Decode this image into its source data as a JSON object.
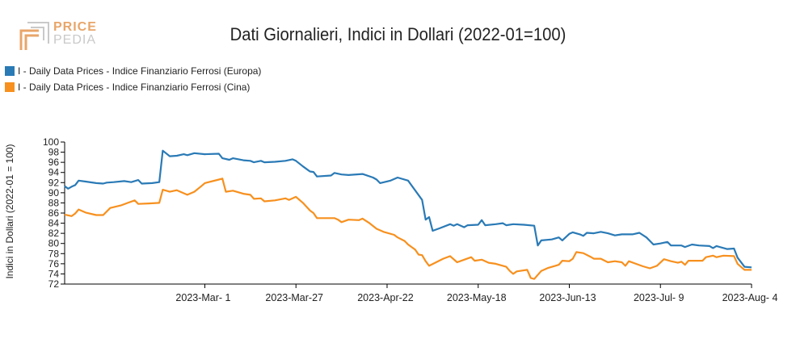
{
  "logo": {
    "price": "PRICE",
    "pedia": "PEDIA"
  },
  "colors": {
    "europa": "#2a7ab6",
    "cina": "#f7901e",
    "logo_orange": "#e8a66a",
    "logo_gray": "#c9c9c9"
  },
  "chart_data": {
    "type": "line",
    "title": "Dati Giornalieri, Indici in Dollari (2022-01=100)",
    "ylabel": "Indici in Dollari (2022-01 = 100)",
    "xlabel": "",
    "ylim": [
      72,
      100
    ],
    "yticks": [
      72,
      74,
      76,
      78,
      80,
      82,
      84,
      86,
      88,
      90,
      92,
      94,
      96,
      98,
      100
    ],
    "xlim": [
      "2023-01-20",
      "2023-08-04"
    ],
    "xticks": [
      {
        "date": "2023-03-01",
        "label": "2023-Mar- 1"
      },
      {
        "date": "2023-03-27",
        "label": "2023-Mar-27"
      },
      {
        "date": "2023-04-22",
        "label": "2023-Apr-22"
      },
      {
        "date": "2023-05-18",
        "label": "2023-May-18"
      },
      {
        "date": "2023-06-13",
        "label": "2023-Jun-13"
      },
      {
        "date": "2023-07-09",
        "label": "2023-Jul- 9"
      },
      {
        "date": "2023-08-04",
        "label": "2023-Aug- 4"
      }
    ],
    "legend_position": "top-left",
    "grid": false,
    "series": [
      {
        "name": "I - Daily Data Prices - Indice Finanziario Ferrosi (Europa)",
        "color": "#2a7ab6",
        "points": [
          [
            "2023-01-20",
            91.3
          ],
          [
            "2023-01-21",
            90.8
          ],
          [
            "2023-01-22",
            91.2
          ],
          [
            "2023-01-23",
            91.5
          ],
          [
            "2023-01-24",
            92.4
          ],
          [
            "2023-01-26",
            92.2
          ],
          [
            "2023-01-29",
            91.9
          ],
          [
            "2023-01-31",
            91.8
          ],
          [
            "2023-02-01",
            92.0
          ],
          [
            "2023-02-03",
            92.1
          ],
          [
            "2023-02-06",
            92.3
          ],
          [
            "2023-02-08",
            92.1
          ],
          [
            "2023-02-10",
            92.5
          ],
          [
            "2023-02-11",
            91.8
          ],
          [
            "2023-02-14",
            91.9
          ],
          [
            "2023-02-16",
            92.1
          ],
          [
            "2023-02-17",
            98.3
          ],
          [
            "2023-02-19",
            97.2
          ],
          [
            "2023-02-21",
            97.3
          ],
          [
            "2023-02-23",
            97.6
          ],
          [
            "2023-02-24",
            97.4
          ],
          [
            "2023-02-26",
            97.8
          ],
          [
            "2023-03-01",
            97.6
          ],
          [
            "2023-03-05",
            97.7
          ],
          [
            "2023-03-06",
            96.8
          ],
          [
            "2023-03-08",
            96.5
          ],
          [
            "2023-03-09",
            96.8
          ],
          [
            "2023-03-12",
            96.4
          ],
          [
            "2023-03-14",
            96.3
          ],
          [
            "2023-03-15",
            96.0
          ],
          [
            "2023-03-17",
            96.3
          ],
          [
            "2023-03-18",
            96.0
          ],
          [
            "2023-03-21",
            96.1
          ],
          [
            "2023-03-24",
            96.3
          ],
          [
            "2023-03-26",
            96.6
          ],
          [
            "2023-03-27",
            96.3
          ],
          [
            "2023-03-29",
            95.2
          ],
          [
            "2023-03-31",
            94.2
          ],
          [
            "2023-04-01",
            94.1
          ],
          [
            "2023-04-02",
            93.2
          ],
          [
            "2023-04-06",
            93.4
          ],
          [
            "2023-04-07",
            93.9
          ],
          [
            "2023-04-09",
            93.6
          ],
          [
            "2023-04-11",
            93.5
          ],
          [
            "2023-04-15",
            93.7
          ],
          [
            "2023-04-18",
            93.0
          ],
          [
            "2023-04-19",
            92.6
          ],
          [
            "2023-04-20",
            91.9
          ],
          [
            "2023-04-23",
            92.4
          ],
          [
            "2023-04-25",
            93.0
          ],
          [
            "2023-04-28",
            92.4
          ],
          [
            "2023-05-02",
            88.6
          ],
          [
            "2023-05-03",
            84.7
          ],
          [
            "2023-05-04",
            85.2
          ],
          [
            "2023-05-05",
            82.5
          ],
          [
            "2023-05-07",
            83.0
          ],
          [
            "2023-05-10",
            83.8
          ],
          [
            "2023-05-11",
            83.5
          ],
          [
            "2023-05-12",
            83.8
          ],
          [
            "2023-05-14",
            83.2
          ],
          [
            "2023-05-15",
            83.6
          ],
          [
            "2023-05-18",
            83.7
          ],
          [
            "2023-05-19",
            84.6
          ],
          [
            "2023-05-20",
            83.6
          ],
          [
            "2023-05-23",
            83.8
          ],
          [
            "2023-05-25",
            84.0
          ],
          [
            "2023-05-26",
            83.6
          ],
          [
            "2023-05-28",
            83.8
          ],
          [
            "2023-05-31",
            83.7
          ],
          [
            "2023-06-03",
            83.5
          ],
          [
            "2023-06-04",
            79.6
          ],
          [
            "2023-06-05",
            80.6
          ],
          [
            "2023-06-08",
            80.8
          ],
          [
            "2023-06-10",
            81.2
          ],
          [
            "2023-06-11",
            80.6
          ],
          [
            "2023-06-13",
            81.9
          ],
          [
            "2023-06-14",
            82.2
          ],
          [
            "2023-06-16",
            81.8
          ],
          [
            "2023-06-17",
            81.5
          ],
          [
            "2023-06-18",
            82.1
          ],
          [
            "2023-06-20",
            82.0
          ],
          [
            "2023-06-22",
            82.3
          ],
          [
            "2023-06-24",
            82.0
          ],
          [
            "2023-06-26",
            81.6
          ],
          [
            "2023-06-28",
            81.8
          ],
          [
            "2023-07-01",
            81.8
          ],
          [
            "2023-07-03",
            82.1
          ],
          [
            "2023-07-05",
            81.2
          ],
          [
            "2023-07-07",
            79.8
          ],
          [
            "2023-07-09",
            80.0
          ],
          [
            "2023-07-11",
            80.3
          ],
          [
            "2023-07-12",
            79.6
          ],
          [
            "2023-07-15",
            79.6
          ],
          [
            "2023-07-16",
            79.3
          ],
          [
            "2023-07-18",
            79.8
          ],
          [
            "2023-07-20",
            79.6
          ],
          [
            "2023-07-23",
            79.5
          ],
          [
            "2023-07-24",
            79.1
          ],
          [
            "2023-07-25",
            79.5
          ],
          [
            "2023-07-28",
            78.9
          ],
          [
            "2023-07-30",
            79.0
          ],
          [
            "2023-07-31",
            77.2
          ],
          [
            "2023-08-02",
            75.4
          ],
          [
            "2023-08-04",
            75.3
          ]
        ]
      },
      {
        "name": "I - Daily Data Prices - Indice Finanziario Ferrosi (Cina)",
        "color": "#f7901e",
        "points": [
          [
            "2023-01-20",
            85.7
          ],
          [
            "2023-01-22",
            85.4
          ],
          [
            "2023-01-23",
            85.9
          ],
          [
            "2023-01-24",
            86.7
          ],
          [
            "2023-01-26",
            86.1
          ],
          [
            "2023-01-29",
            85.6
          ],
          [
            "2023-01-31",
            85.6
          ],
          [
            "2023-02-02",
            87.0
          ],
          [
            "2023-02-05",
            87.5
          ],
          [
            "2023-02-07",
            88.0
          ],
          [
            "2023-02-09",
            88.5
          ],
          [
            "2023-02-10",
            87.8
          ],
          [
            "2023-02-13",
            87.9
          ],
          [
            "2023-02-16",
            88.0
          ],
          [
            "2023-02-17",
            90.6
          ],
          [
            "2023-02-19",
            90.2
          ],
          [
            "2023-02-21",
            90.5
          ],
          [
            "2023-02-24",
            89.6
          ],
          [
            "2023-02-26",
            90.2
          ],
          [
            "2023-02-28",
            91.3
          ],
          [
            "2023-03-01",
            91.9
          ],
          [
            "2023-03-05",
            92.6
          ],
          [
            "2023-03-06",
            92.8
          ],
          [
            "2023-03-07",
            90.2
          ],
          [
            "2023-03-09",
            90.4
          ],
          [
            "2023-03-12",
            89.8
          ],
          [
            "2023-03-14",
            89.6
          ],
          [
            "2023-03-15",
            88.8
          ],
          [
            "2023-03-17",
            88.9
          ],
          [
            "2023-03-18",
            88.3
          ],
          [
            "2023-03-21",
            88.5
          ],
          [
            "2023-03-24",
            88.9
          ],
          [
            "2023-03-25",
            88.6
          ],
          [
            "2023-03-27",
            89.2
          ],
          [
            "2023-03-29",
            88.0
          ],
          [
            "2023-03-31",
            86.5
          ],
          [
            "2023-04-01",
            86.0
          ],
          [
            "2023-04-02",
            85.0
          ],
          [
            "2023-04-07",
            85.0
          ],
          [
            "2023-04-08",
            84.7
          ],
          [
            "2023-04-09",
            84.2
          ],
          [
            "2023-04-11",
            84.7
          ],
          [
            "2023-04-14",
            84.6
          ],
          [
            "2023-04-15",
            84.9
          ],
          [
            "2023-04-17",
            84.0
          ],
          [
            "2023-04-19",
            82.9
          ],
          [
            "2023-04-21",
            82.3
          ],
          [
            "2023-04-24",
            81.7
          ],
          [
            "2023-04-25",
            81.2
          ],
          [
            "2023-04-27",
            80.5
          ],
          [
            "2023-04-28",
            79.8
          ],
          [
            "2023-04-30",
            78.8
          ],
          [
            "2023-05-01",
            77.8
          ],
          [
            "2023-05-02",
            77.7
          ],
          [
            "2023-05-03",
            76.5
          ],
          [
            "2023-05-04",
            75.6
          ],
          [
            "2023-05-06",
            76.3
          ],
          [
            "2023-05-08",
            77.0
          ],
          [
            "2023-05-10",
            77.5
          ],
          [
            "2023-05-12",
            76.3
          ],
          [
            "2023-05-14",
            76.8
          ],
          [
            "2023-05-16",
            77.3
          ],
          [
            "2023-05-17",
            76.6
          ],
          [
            "2023-05-19",
            76.8
          ],
          [
            "2023-05-21",
            76.2
          ],
          [
            "2023-05-23",
            76.0
          ],
          [
            "2023-05-26",
            75.4
          ],
          [
            "2023-05-27",
            74.6
          ],
          [
            "2023-05-28",
            74.0
          ],
          [
            "2023-05-29",
            74.5
          ],
          [
            "2023-06-01",
            74.8
          ],
          [
            "2023-06-02",
            73.2
          ],
          [
            "2023-06-03",
            73.0
          ],
          [
            "2023-06-05",
            74.6
          ],
          [
            "2023-06-07",
            75.2
          ],
          [
            "2023-06-09",
            75.6
          ],
          [
            "2023-06-10",
            75.8
          ],
          [
            "2023-06-11",
            76.6
          ],
          [
            "2023-06-13",
            76.5
          ],
          [
            "2023-06-14",
            77.0
          ],
          [
            "2023-06-15",
            78.3
          ],
          [
            "2023-06-17",
            78.1
          ],
          [
            "2023-06-19",
            77.4
          ],
          [
            "2023-06-20",
            77.0
          ],
          [
            "2023-06-22",
            77.0
          ],
          [
            "2023-06-24",
            76.3
          ],
          [
            "2023-06-26",
            76.5
          ],
          [
            "2023-06-28",
            76.3
          ],
          [
            "2023-06-29",
            75.6
          ],
          [
            "2023-06-30",
            76.5
          ],
          [
            "2023-07-02",
            76.0
          ],
          [
            "2023-07-04",
            75.5
          ],
          [
            "2023-07-06",
            75.1
          ],
          [
            "2023-07-08",
            75.6
          ],
          [
            "2023-07-10",
            76.9
          ],
          [
            "2023-07-12",
            76.5
          ],
          [
            "2023-07-14",
            76.2
          ],
          [
            "2023-07-15",
            76.4
          ],
          [
            "2023-07-16",
            75.8
          ],
          [
            "2023-07-17",
            76.6
          ],
          [
            "2023-07-21",
            76.6
          ],
          [
            "2023-07-22",
            77.3
          ],
          [
            "2023-07-24",
            77.6
          ],
          [
            "2023-07-25",
            77.3
          ],
          [
            "2023-07-27",
            77.6
          ],
          [
            "2023-07-30",
            77.5
          ],
          [
            "2023-07-31",
            76.0
          ],
          [
            "2023-08-02",
            74.8
          ],
          [
            "2023-08-04",
            74.8
          ]
        ]
      }
    ]
  }
}
